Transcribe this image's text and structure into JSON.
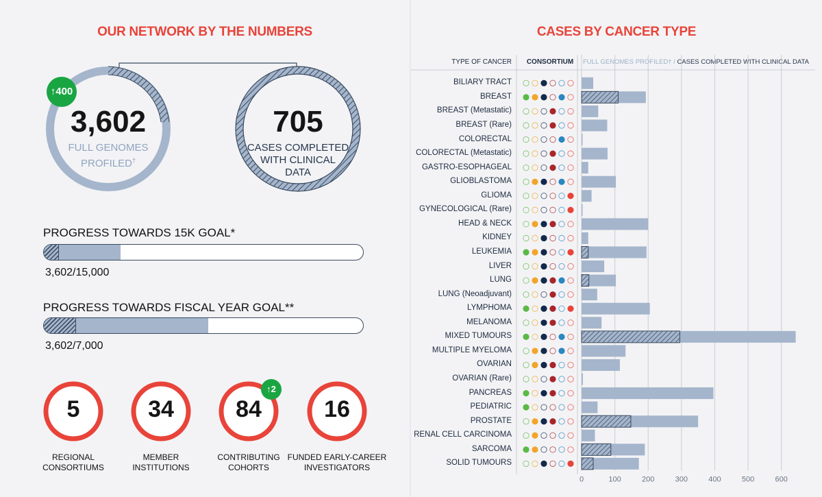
{
  "left": {
    "title": "OUR NETWORK BY THE NUMBERS",
    "genomes": {
      "value": "3,602",
      "label_line1": "FULL GENOMES",
      "label_line2": "PROFILED",
      "dagger": "†",
      "badge": "400",
      "badge_arrow": "↑"
    },
    "clinical": {
      "value": "705",
      "label_line1": "CASES COMPLETED",
      "label_line2": "WITH CLINICAL",
      "label_line3": "DATA"
    },
    "progress": [
      {
        "label": "PROGRESS TOWARDS 15K GOAL*",
        "value_text": "3,602/15,000",
        "profiled": 3602,
        "clinical": 705,
        "goal": 15000
      },
      {
        "label": "PROGRESS TOWARDS FISCAL YEAR GOAL**",
        "value_text": "3,602/7,000",
        "profiled": 3602,
        "clinical": 705,
        "goal": 7000
      }
    ],
    "stats": [
      {
        "value": "5",
        "label_line1": "REGIONAL",
        "label_line2": "CONSORTIUMS",
        "badge": ""
      },
      {
        "value": "34",
        "label_line1": "MEMBER",
        "label_line2": "INSTITUTIONS",
        "badge": ""
      },
      {
        "value": "84",
        "label_line1": "CONTRIBUTING",
        "label_line2": "COHORTS",
        "badge": "2"
      },
      {
        "value": "16",
        "label_line1": "FUNDED EARLY-CAREER",
        "label_line2": "INVESTIGATORS",
        "badge": ""
      }
    ],
    "colors": {
      "red": "#e8443a",
      "green": "#1aa543",
      "blue": "#a4b5cc",
      "navy": "#3a4a5f"
    }
  },
  "chart_data": {
    "type": "bar",
    "title": "CASES BY CANCER TYPE",
    "col_type": "TYPE OF CANCER",
    "col_consortium": "CONSORTIUM",
    "legend_profiled": "FULL GENOMES PROFILED†",
    "legend_sep": "/",
    "legend_clinical": "CASES COMPLETED WITH CLINICAL DATA",
    "xlim": [
      0,
      650
    ],
    "xticks": [
      0,
      100,
      200,
      300,
      400,
      500,
      600
    ],
    "consortium_colors": [
      "#5cb947",
      "#f2a52a",
      "#13294b",
      "#a8262a",
      "#2a87c2",
      "#e8443a"
    ],
    "categories": [
      "BILIARY TRACT",
      "BREAST",
      "BREAST (Metastatic)",
      "BREAST (Rare)",
      "COLORECTAL",
      "COLORECTAL (Metastatic)",
      "GASTRO-ESOPHAGEAL",
      "GLIOBLASTOMA",
      "GLIOMA",
      "GYNECOLOGICAL (Rare)",
      "HEAD & NECK",
      "KIDNEY",
      "LEUKEMIA",
      "LIVER",
      "LUNG",
      "LUNG (Neoadjuvant)",
      "LYMPHOMA",
      "MELANOMA",
      "MIXED TUMOURS",
      "MULTIPLE MYELOMA",
      "OVARIAN",
      "OVARIAN (Rare)",
      "PANCREAS",
      "PEDIATRIC",
      "PROSTATE",
      "RENAL CELL CARCINOMA",
      "SARCOMA",
      "SOLID TUMOURS"
    ],
    "series": [
      {
        "name": "FULL GENOMES PROFILED",
        "values": [
          35,
          193,
          50,
          77,
          3,
          78,
          20,
          103,
          30,
          3,
          200,
          20,
          195,
          68,
          103,
          47,
          205,
          60,
          643,
          132,
          115,
          4,
          396,
          48,
          350,
          40,
          190,
          172
        ]
      },
      {
        "name": "CASES COMPLETED WITH CLINICAL DATA",
        "values": [
          0,
          110,
          0,
          0,
          0,
          0,
          0,
          0,
          0,
          0,
          0,
          0,
          20,
          0,
          22,
          0,
          0,
          0,
          295,
          0,
          0,
          0,
          0,
          0,
          148,
          0,
          88,
          35
        ]
      }
    ],
    "consortium": [
      [
        0,
        0,
        1,
        0,
        0,
        0
      ],
      [
        1,
        1,
        1,
        0,
        1,
        0
      ],
      [
        0,
        0,
        0,
        1,
        0,
        0
      ],
      [
        0,
        0,
        0,
        1,
        0,
        0
      ],
      [
        0,
        0,
        0,
        0,
        1,
        0
      ],
      [
        0,
        0,
        0,
        1,
        0,
        0
      ],
      [
        0,
        0,
        0,
        1,
        0,
        0
      ],
      [
        0,
        1,
        1,
        0,
        1,
        0
      ],
      [
        0,
        0,
        0,
        0,
        0,
        1
      ],
      [
        0,
        0,
        0,
        0,
        0,
        1
      ],
      [
        0,
        1,
        1,
        1,
        0,
        0
      ],
      [
        0,
        0,
        1,
        0,
        0,
        0
      ],
      [
        1,
        1,
        1,
        0,
        0,
        1
      ],
      [
        0,
        0,
        1,
        0,
        0,
        0
      ],
      [
        0,
        1,
        1,
        1,
        1,
        0
      ],
      [
        0,
        0,
        0,
        1,
        0,
        0
      ],
      [
        1,
        0,
        1,
        1,
        0,
        1
      ],
      [
        0,
        0,
        1,
        1,
        0,
        0
      ],
      [
        1,
        0,
        1,
        0,
        1,
        0
      ],
      [
        0,
        1,
        1,
        0,
        1,
        0
      ],
      [
        0,
        1,
        1,
        1,
        0,
        0
      ],
      [
        0,
        0,
        0,
        1,
        0,
        0
      ],
      [
        1,
        0,
        1,
        1,
        0,
        0
      ],
      [
        1,
        0,
        0,
        0,
        0,
        0
      ],
      [
        0,
        1,
        1,
        1,
        0,
        0
      ],
      [
        0,
        1,
        0,
        0,
        0,
        0
      ],
      [
        1,
        1,
        0,
        0,
        0,
        0
      ],
      [
        0,
        0,
        1,
        0,
        0,
        1
      ]
    ]
  }
}
